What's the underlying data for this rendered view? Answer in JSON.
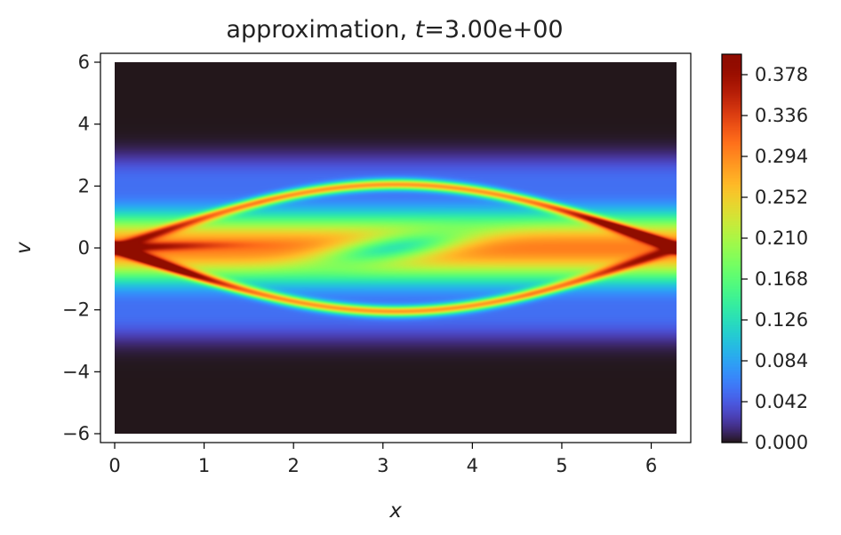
{
  "chart_data": {
    "type": "heatmap",
    "title": {
      "prefix": "approximation, ",
      "variable": "t",
      "suffix": "=3.00e+00"
    },
    "xlabel": "x",
    "ylabel": "v",
    "xlim": [
      0,
      6.283
    ],
    "ylim": [
      -6,
      6
    ],
    "x_ticks": [
      {
        "value": 0,
        "label": "0"
      },
      {
        "value": 1,
        "label": "1"
      },
      {
        "value": 2,
        "label": "2"
      },
      {
        "value": 3,
        "label": "3"
      },
      {
        "value": 4,
        "label": "4"
      },
      {
        "value": 5,
        "label": "5"
      },
      {
        "value": 6,
        "label": "6"
      }
    ],
    "y_ticks": [
      {
        "value": 6,
        "label": "6"
      },
      {
        "value": 4,
        "label": "4"
      },
      {
        "value": 2,
        "label": "2"
      },
      {
        "value": 0,
        "label": "0"
      },
      {
        "value": -2,
        "label": "−2"
      },
      {
        "value": -4,
        "label": "−4"
      },
      {
        "value": -6,
        "label": "−6"
      }
    ],
    "colorbar": {
      "colormap": "turbo",
      "range": [
        0,
        0.399
      ],
      "ticks": [
        {
          "value": 0.0,
          "label": "0.000"
        },
        {
          "value": 0.042,
          "label": "0.042"
        },
        {
          "value": 0.084,
          "label": "0.084"
        },
        {
          "value": 0.126,
          "label": "0.126"
        },
        {
          "value": 0.168,
          "label": "0.168"
        },
        {
          "value": 0.21,
          "label": "0.210"
        },
        {
          "value": 0.252,
          "label": "0.252"
        },
        {
          "value": 0.294,
          "label": "0.294"
        },
        {
          "value": 0.336,
          "label": "0.336"
        },
        {
          "value": 0.378,
          "label": "0.378"
        }
      ]
    }
  }
}
